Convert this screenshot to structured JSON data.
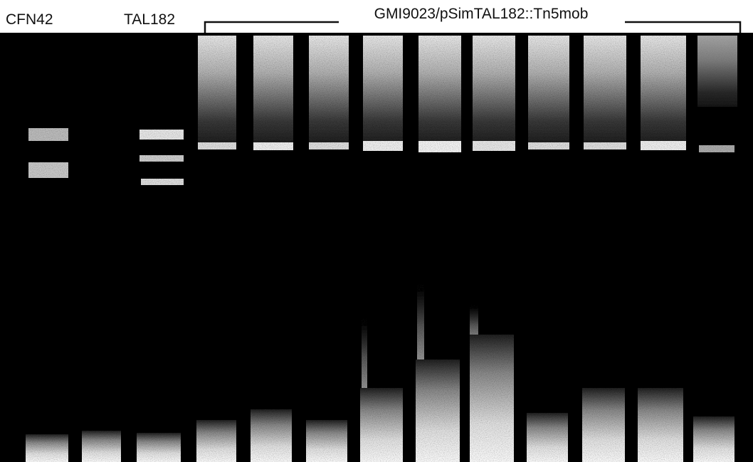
{
  "labels": {
    "lane_1": "CFN42",
    "lane_2": "TAL182",
    "group": "GMI9023/pSimTAL182::Tn5mob"
  }
}
